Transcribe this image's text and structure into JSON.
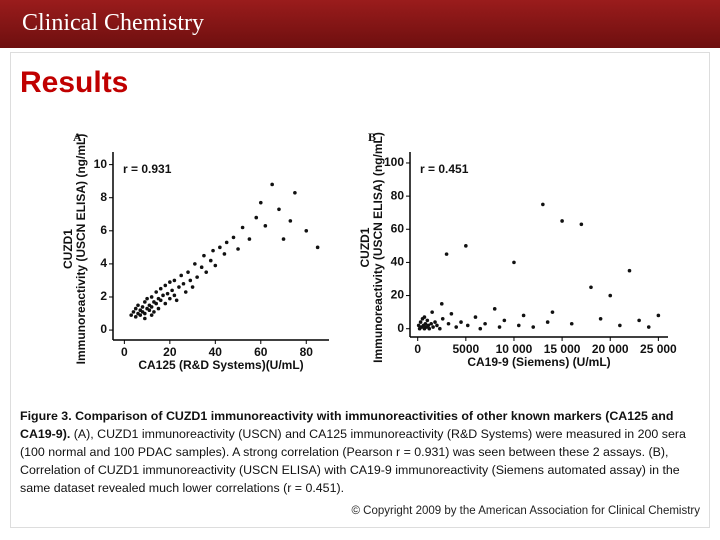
{
  "header": {
    "title": "Clinical Chemistry"
  },
  "heading": "Results",
  "chart_data": [
    {
      "type": "scatter",
      "panel": "A",
      "annotation": "r = 0.931",
      "xlabel": "CA125 (R&D Systems)(U/mL)",
      "ylabel": [
        "CUZD1",
        "Immunoreactivity (USCN ELISA) (ng/mL)"
      ],
      "xlim": [
        -5,
        90
      ],
      "ylim": [
        -0.6,
        10.4
      ],
      "xticks": [
        0,
        20,
        40,
        60,
        80
      ],
      "yticks": [
        0,
        2,
        4,
        6,
        8,
        10
      ],
      "series": [
        {
          "color": "#111111",
          "x": [
            3,
            4,
            5,
            5,
            6,
            6,
            7,
            7,
            8,
            8,
            9,
            9,
            10,
            10,
            11,
            11,
            12,
            12,
            13,
            13,
            14,
            14,
            15,
            15,
            16,
            16,
            17,
            18,
            18,
            19,
            20,
            20,
            21,
            22,
            22,
            24,
            25,
            26,
            27,
            28,
            29,
            30,
            31,
            32,
            34,
            35,
            36,
            38,
            39,
            40,
            42,
            44,
            45,
            48,
            50,
            52,
            55,
            58,
            60,
            62,
            65,
            68,
            70,
            73,
            75,
            80,
            85,
            9,
            12,
            23
          ],
          "values": [
            0.9,
            1.1,
            0.8,
            1.3,
            1.0,
            1.5,
            1.2,
            0.9,
            1.4,
            1.1,
            1.7,
            1.0,
            1.3,
            1.9,
            1.5,
            1.2,
            2.0,
            1.4,
            1.7,
            1.1,
            2.3,
            1.6,
            1.9,
            1.3,
            2.5,
            1.8,
            2.1,
            1.6,
            2.7,
            2.2,
            1.9,
            2.9,
            2.4,
            3.0,
            2.1,
            2.6,
            3.3,
            2.8,
            2.3,
            3.5,
            3.0,
            2.6,
            4.0,
            3.2,
            3.8,
            4.5,
            3.5,
            4.2,
            4.8,
            3.9,
            5.0,
            4.6,
            5.3,
            5.6,
            4.9,
            6.2,
            5.5,
            6.8,
            7.7,
            6.3,
            8.8,
            7.3,
            5.5,
            6.6,
            8.3,
            6.0,
            5.0,
            0.7,
            0.9,
            1.8
          ]
        }
      ]
    },
    {
      "type": "scatter",
      "panel": "B",
      "annotation": "r = 0.451",
      "xlabel": "CA19-9 (Siemens) (U/mL)",
      "ylabel": [
        "CUZD1",
        "Immunoreactivity (USCN ELISA) (ng/mL)"
      ],
      "xlim": [
        -800,
        26000
      ],
      "ylim": [
        -5,
        103
      ],
      "xticks": [
        0,
        5000,
        {
          "value": 10000,
          "label": "10 000"
        },
        {
          "value": 15000,
          "label": "15 000"
        },
        {
          "value": 20000,
          "label": "20 000"
        },
        {
          "value": 25000,
          "label": "25 000"
        }
      ],
      "yticks": [
        0,
        20,
        40,
        60,
        80,
        100
      ],
      "series": [
        {
          "color": "#111111",
          "x": [
            100,
            200,
            300,
            400,
            500,
            600,
            700,
            800,
            900,
            1000,
            1100,
            1200,
            1400,
            1600,
            1800,
            2000,
            2300,
            2600,
            3000,
            3200,
            3500,
            4000,
            4500,
            5000,
            5200,
            6000,
            6500,
            7000,
            8000,
            8500,
            9000,
            10000,
            10500,
            11000,
            12000,
            13000,
            13500,
            14000,
            15000,
            16000,
            17000,
            18000,
            19000,
            20000,
            21000,
            22000,
            23000,
            24000,
            25000,
            1500,
            2500,
            700
          ],
          "values": [
            2,
            0,
            4,
            1,
            6,
            2,
            0,
            3,
            1,
            5,
            2,
            0,
            3,
            1,
            4,
            2,
            0,
            6,
            45,
            3,
            9,
            1,
            4,
            50,
            2,
            7,
            0,
            3,
            12,
            1,
            5,
            40,
            2,
            8,
            1,
            75,
            4,
            10,
            65,
            3,
            63,
            25,
            6,
            20,
            2,
            35,
            5,
            1,
            8,
            10,
            15,
            7
          ]
        }
      ]
    }
  ],
  "caption": {
    "title": "Figure 3. Comparison of CUZD1 immunoreactivity with immunoreactivities of other known markers (CA125 and CA19-9).",
    "text": "(A), CUZD1 immunoreactivity (USCN) and CA125 immunoreactivity (R&D Systems) were measured in 200 sera (100 normal and 100 PDAC samples). A strong correlation (Pearson r = 0.931) was seen between these 2 assays. (B), Correlation of CUZD1 immunoreactivity (USCN ELISA) with CA19-9 immunoreactivity (Siemens automated assay) in the same dataset revealed much lower correlations (r = 0.451)."
  },
  "copyright": "© Copyright 2009 by the American Association for Clinical Chemistry"
}
